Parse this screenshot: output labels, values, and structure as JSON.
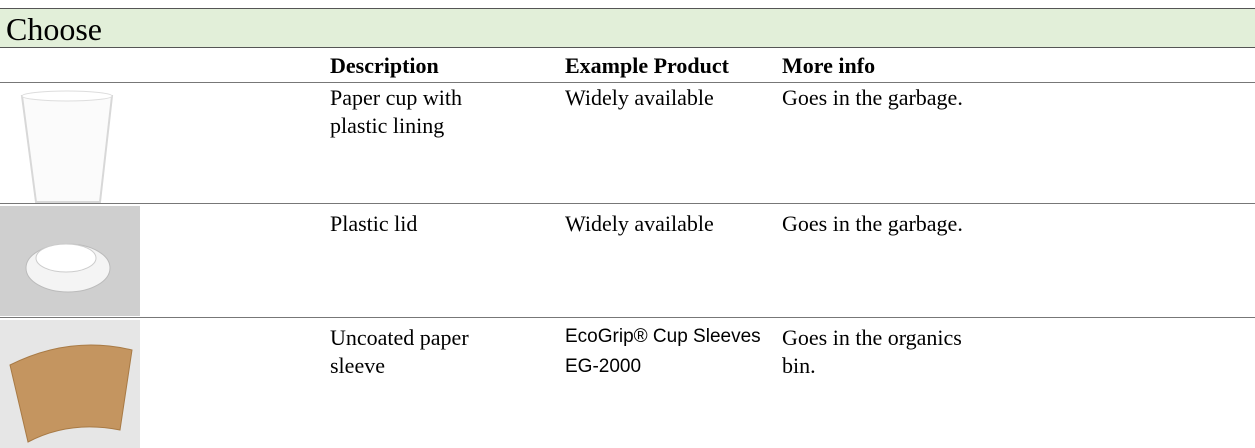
{
  "header": {
    "title": "Choose"
  },
  "table": {
    "columns": [
      "Description",
      "Example Product",
      "More info"
    ],
    "rows": [
      [
        "Paper cup with plastic lining",
        "Widely available",
        "Goes in the garbage."
      ],
      [
        "Plastic lid",
        "Widely available",
        "Goes in the garbage."
      ],
      [
        "Uncoated paper sleeve",
        "EcoGrip® Cup Sleeves EG-2000",
        "Goes in the organics bin."
      ]
    ]
  }
}
